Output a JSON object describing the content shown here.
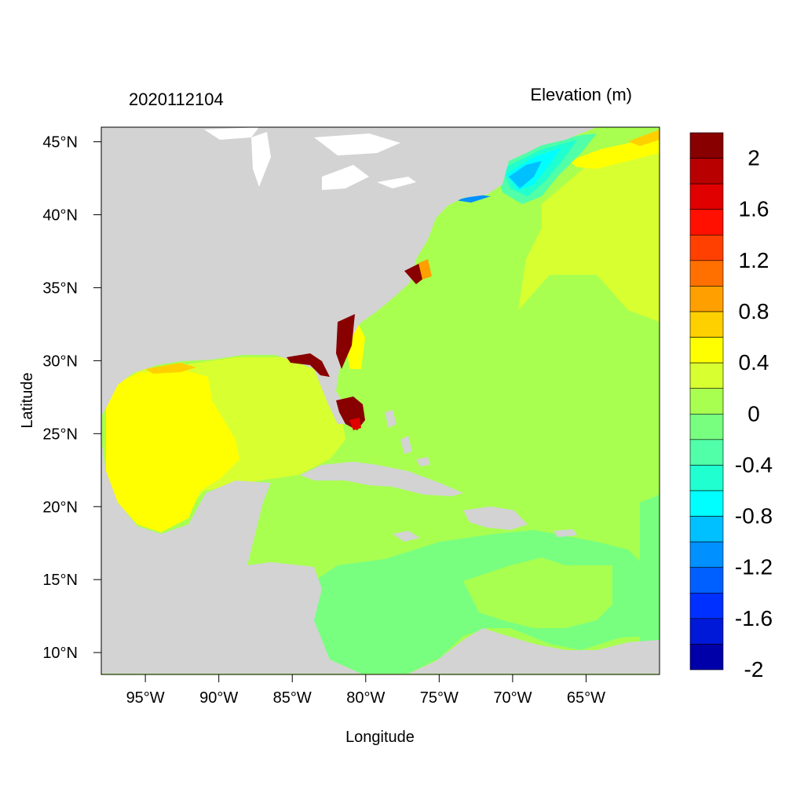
{
  "header": {
    "timestamp": "2020112104",
    "variable_title": "Elevation (m)"
  },
  "axes": {
    "xlabel": "Longitude",
    "ylabel": "Latitude",
    "lon_ticks": [
      {
        "value": -95,
        "label": "95°W"
      },
      {
        "value": -90,
        "label": "90°W"
      },
      {
        "value": -85,
        "label": "85°W"
      },
      {
        "value": -80,
        "label": "80°W"
      },
      {
        "value": -75,
        "label": "75°W"
      },
      {
        "value": -70,
        "label": "70°W"
      },
      {
        "value": -65,
        "label": "65°W"
      }
    ],
    "lat_ticks": [
      {
        "value": 45,
        "label": "45°N"
      },
      {
        "value": 40,
        "label": "40°N"
      },
      {
        "value": 35,
        "label": "35°N"
      },
      {
        "value": 30,
        "label": "30°N"
      },
      {
        "value": 25,
        "label": "25°N"
      },
      {
        "value": 20,
        "label": "20°N"
      },
      {
        "value": 15,
        "label": "15°N"
      },
      {
        "value": 10,
        "label": "10°N"
      }
    ],
    "lon_range": [
      -98,
      -60
    ],
    "lat_range": [
      8.5,
      46
    ]
  },
  "colorbar": {
    "colors": [
      "#0000a8",
      "#0018d8",
      "#0030ff",
      "#0060ff",
      "#0090ff",
      "#00c0ff",
      "#00ffff",
      "#20ffd0",
      "#50ffa8",
      "#78ff80",
      "#a8ff50",
      "#d8ff30",
      "#ffff00",
      "#ffd000",
      "#ffa000",
      "#ff7000",
      "#ff4000",
      "#ff1000",
      "#e00000",
      "#b80000",
      "#880000"
    ],
    "labels": [
      "2",
      "1.6",
      "1.2",
      "0.8",
      "0.4",
      "0",
      "-0.4",
      "-0.8",
      "-1.2",
      "-1.6",
      "-2"
    ]
  },
  "legend_colors": {
    "land": "#d3d3d3",
    "ocean_base": "#a8ff50"
  }
}
